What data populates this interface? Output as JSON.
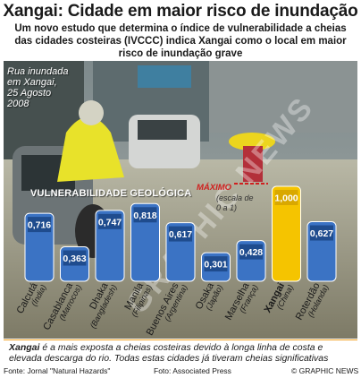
{
  "title": "Xangai: Cidade em maior risco de inundação",
  "subtitle": "Um novo estudo que determina o índice de vulnerabilidade a cheias das cidades costeiras (IVCCC) indica Xangai como o local em maior risco de inundação grave",
  "photo_caption": "Rua inundada\nem Xangai,\n25 Agosto\n2008",
  "watermark": "GRAPHIC NEWS",
  "colors": {
    "bar": "#3b73c4",
    "highlight": "#f5c400",
    "accent": "#d0201f",
    "rule": "#f0a020"
  },
  "chart_data": {
    "type": "bar",
    "title": "VULNERABILIDADE GEOLÓGICA",
    "max_label": "MÁXIMO",
    "scale_note": "(escala de\n0 a 1)",
    "ylim": [
      0,
      1
    ],
    "categories": [
      "Calcutá (Índia)",
      "Casablanca (Marrocos)",
      "Dhaka (Bangladesh)",
      "Manila (Filipinas)",
      "Buenos Aires (Argentina)",
      "Osaka (Japão)",
      "Marselha (França)",
      "Xangai (China)",
      "Roterdão (Holanda)"
    ],
    "city_names": [
      "Calcutá",
      "Casablanca",
      "Dhaka",
      "Manila",
      "Buenos Aires",
      "Osaka",
      "Marselha",
      "Xangai",
      "Roterdão"
    ],
    "countries": [
      "(Índia)",
      "(Marrocos)",
      "(Bangladesh)",
      "(Filipinas)",
      "(Argentina)",
      "(Japão)",
      "(França)",
      "(China)",
      "(Holanda)"
    ],
    "values": [
      0.716,
      0.363,
      0.747,
      0.818,
      0.617,
      0.301,
      0.428,
      1.0,
      0.627
    ],
    "value_labels": [
      "0,716",
      "0,363",
      "0,747",
      "0,818",
      "0,617",
      "0,301",
      "0,428",
      "1,000",
      "0,627"
    ],
    "highlight": "Xangai"
  },
  "footnote": {
    "lead": "Xangai",
    "text": " é a mais exposta a cheias costeiras devido à longa linha de costa e elevada descarga do rio. Todas estas cidades já tiveram cheias significativas"
  },
  "source_left": "Fonte: Jornal \"Natural Hazards\"",
  "source_mid": "Foto: Associated Press",
  "source_right": "© GRAPHIC NEWS"
}
